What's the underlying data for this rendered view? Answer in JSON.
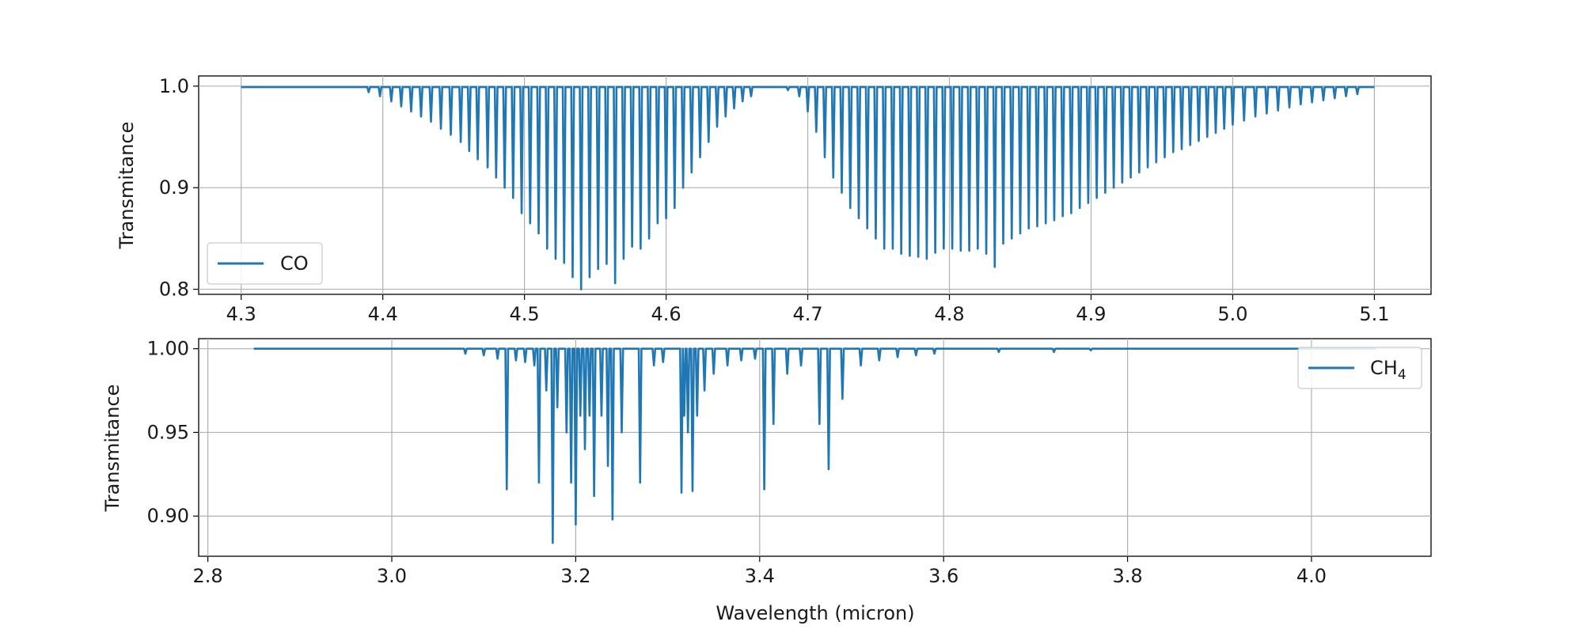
{
  "chart_data": [
    {
      "type": "line",
      "title": "",
      "xlabel": "",
      "ylabel": "Transmitance",
      "xlim": [
        4.27,
        5.14
      ],
      "ylim": [
        0.795,
        1.01
      ],
      "xticks": [
        4.3,
        4.4,
        4.5,
        4.6,
        4.7,
        4.8,
        4.9,
        5.0,
        5.1
      ],
      "xtick_labels": [
        "4.3",
        "4.4",
        "4.5",
        "4.6",
        "4.7",
        "4.8",
        "4.9",
        "5.0",
        "5.1"
      ],
      "yticks": [
        0.8,
        0.9,
        1.0
      ],
      "ytick_labels": [
        "0.8",
        "0.9",
        "1.0"
      ],
      "grid": true,
      "legend_position": "lower-left",
      "color": "#1f77b4",
      "series": [
        {
          "name": "CO",
          "baseline": 0.999,
          "x_range": [
            4.3,
            5.1
          ],
          "absorption_lines": [
            [
              4.39,
              0.994
            ],
            [
              4.398,
              0.99
            ],
            [
              4.406,
              0.985
            ],
            [
              4.413,
              0.98
            ],
            [
              4.42,
              0.975
            ],
            [
              4.427,
              0.97
            ],
            [
              4.434,
              0.965
            ],
            [
              4.441,
              0.958
            ],
            [
              4.448,
              0.952
            ],
            [
              4.455,
              0.945
            ],
            [
              4.461,
              0.936
            ],
            [
              4.467,
              0.928
            ],
            [
              4.474,
              0.92
            ],
            [
              4.48,
              0.91
            ],
            [
              4.486,
              0.9
            ],
            [
              4.492,
              0.89
            ],
            [
              4.498,
              0.875
            ],
            [
              4.504,
              0.865
            ],
            [
              4.51,
              0.855
            ],
            [
              4.516,
              0.84
            ],
            [
              4.522,
              0.83
            ],
            [
              4.528,
              0.826
            ],
            [
              4.534,
              0.812
            ],
            [
              4.54,
              0.8
            ],
            [
              4.546,
              0.812
            ],
            [
              4.552,
              0.82
            ],
            [
              4.558,
              0.825
            ],
            [
              4.564,
              0.806
            ],
            [
              4.57,
              0.83
            ],
            [
              4.576,
              0.842
            ],
            [
              4.582,
              0.84
            ],
            [
              4.588,
              0.85
            ],
            [
              4.594,
              0.865
            ],
            [
              4.6,
              0.87
            ],
            [
              4.606,
              0.88
            ],
            [
              4.612,
              0.9
            ],
            [
              4.618,
              0.915
            ],
            [
              4.624,
              0.93
            ],
            [
              4.63,
              0.945
            ],
            [
              4.636,
              0.96
            ],
            [
              4.642,
              0.97
            ],
            [
              4.648,
              0.978
            ],
            [
              4.654,
              0.985
            ],
            [
              4.66,
              0.99
            ],
            [
              4.686,
              0.996
            ],
            [
              4.694,
              0.99
            ],
            [
              4.7,
              0.975
            ],
            [
              4.706,
              0.955
            ],
            [
              4.712,
              0.93
            ],
            [
              4.718,
              0.91
            ],
            [
              4.724,
              0.895
            ],
            [
              4.73,
              0.88
            ],
            [
              4.736,
              0.87
            ],
            [
              4.742,
              0.86
            ],
            [
              4.748,
              0.85
            ],
            [
              4.754,
              0.84
            ],
            [
              4.76,
              0.84
            ],
            [
              4.766,
              0.835
            ],
            [
              4.772,
              0.833
            ],
            [
              4.778,
              0.832
            ],
            [
              4.784,
              0.83
            ],
            [
              4.79,
              0.836
            ],
            [
              4.796,
              0.84
            ],
            [
              4.802,
              0.84
            ],
            [
              4.808,
              0.838
            ],
            [
              4.814,
              0.838
            ],
            [
              4.82,
              0.84
            ],
            [
              4.826,
              0.835
            ],
            [
              4.832,
              0.822
            ],
            [
              4.838,
              0.845
            ],
            [
              4.844,
              0.85
            ],
            [
              4.85,
              0.855
            ],
            [
              4.856,
              0.86
            ],
            [
              4.862,
              0.862
            ],
            [
              4.868,
              0.865
            ],
            [
              4.874,
              0.868
            ],
            [
              4.88,
              0.872
            ],
            [
              4.886,
              0.875
            ],
            [
              4.892,
              0.88
            ],
            [
              4.898,
              0.885
            ],
            [
              4.904,
              0.89
            ],
            [
              4.91,
              0.895
            ],
            [
              4.916,
              0.9
            ],
            [
              4.922,
              0.905
            ],
            [
              4.928,
              0.91
            ],
            [
              4.934,
              0.915
            ],
            [
              4.94,
              0.92
            ],
            [
              4.946,
              0.925
            ],
            [
              4.952,
              0.93
            ],
            [
              4.958,
              0.935
            ],
            [
              4.964,
              0.938
            ],
            [
              4.97,
              0.942
            ],
            [
              4.976,
              0.946
            ],
            [
              4.982,
              0.95
            ],
            [
              4.988,
              0.954
            ],
            [
              4.994,
              0.958
            ],
            [
              5.0,
              0.962
            ],
            [
              5.008,
              0.966
            ],
            [
              5.016,
              0.97
            ],
            [
              5.024,
              0.973
            ],
            [
              5.032,
              0.976
            ],
            [
              5.04,
              0.979
            ],
            [
              5.048,
              0.982
            ],
            [
              5.056,
              0.984
            ],
            [
              5.064,
              0.986
            ],
            [
              5.072,
              0.988
            ],
            [
              5.08,
              0.99
            ],
            [
              5.088,
              0.992
            ]
          ]
        }
      ]
    },
    {
      "type": "line",
      "title": "",
      "xlabel": "Wavelength (micron)",
      "ylabel": "Transmitance",
      "xlim": [
        2.79,
        4.13
      ],
      "ylim": [
        0.876,
        1.006
      ],
      "xticks": [
        2.8,
        3.0,
        3.2,
        3.4,
        3.6,
        3.8,
        4.0
      ],
      "xtick_labels": [
        "2.8",
        "3.0",
        "3.2",
        "3.4",
        "3.6",
        "3.8",
        "4.0"
      ],
      "yticks": [
        0.9,
        0.95,
        1.0
      ],
      "ytick_labels": [
        "0.90",
        "0.95",
        "1.00"
      ],
      "grid": true,
      "legend_position": "upper-right",
      "color": "#1f77b4",
      "series": [
        {
          "name": "CH",
          "name_subscript": "4",
          "baseline": 1.0,
          "x_range": [
            2.85,
            4.07
          ],
          "absorption_lines": [
            [
              3.08,
              0.997
            ],
            [
              3.1,
              0.996
            ],
            [
              3.115,
              0.994
            ],
            [
              3.125,
              0.916
            ],
            [
              3.135,
              0.993
            ],
            [
              3.145,
              0.992
            ],
            [
              3.155,
              0.99
            ],
            [
              3.16,
              0.92
            ],
            [
              3.168,
              0.975
            ],
            [
              3.175,
              0.884
            ],
            [
              3.18,
              0.965
            ],
            [
              3.19,
              0.95
            ],
            [
              3.195,
              0.92
            ],
            [
              3.2,
              0.895
            ],
            [
              3.205,
              0.96
            ],
            [
              3.21,
              0.94
            ],
            [
              3.215,
              0.96
            ],
            [
              3.22,
              0.912
            ],
            [
              3.228,
              0.96
            ],
            [
              3.235,
              0.93
            ],
            [
              3.24,
              0.898
            ],
            [
              3.25,
              0.95
            ],
            [
              3.27,
              0.92
            ],
            [
              3.285,
              0.99
            ],
            [
              3.295,
              0.992
            ],
            [
              3.315,
              0.914
            ],
            [
              3.318,
              0.96
            ],
            [
              3.322,
              0.95
            ],
            [
              3.327,
              0.915
            ],
            [
              3.332,
              0.96
            ],
            [
              3.34,
              0.975
            ],
            [
              3.35,
              0.985
            ],
            [
              3.365,
              0.99
            ],
            [
              3.38,
              0.993
            ],
            [
              3.395,
              0.994
            ],
            [
              3.405,
              0.916
            ],
            [
              3.415,
              0.955
            ],
            [
              3.43,
              0.985
            ],
            [
              3.445,
              0.99
            ],
            [
              3.465,
              0.955
            ],
            [
              3.475,
              0.928
            ],
            [
              3.49,
              0.97
            ],
            [
              3.51,
              0.99
            ],
            [
              3.53,
              0.993
            ],
            [
              3.55,
              0.995
            ],
            [
              3.57,
              0.996
            ],
            [
              3.59,
              0.997
            ],
            [
              3.66,
              0.998
            ],
            [
              3.72,
              0.998
            ],
            [
              3.76,
              0.999
            ]
          ]
        }
      ]
    }
  ]
}
